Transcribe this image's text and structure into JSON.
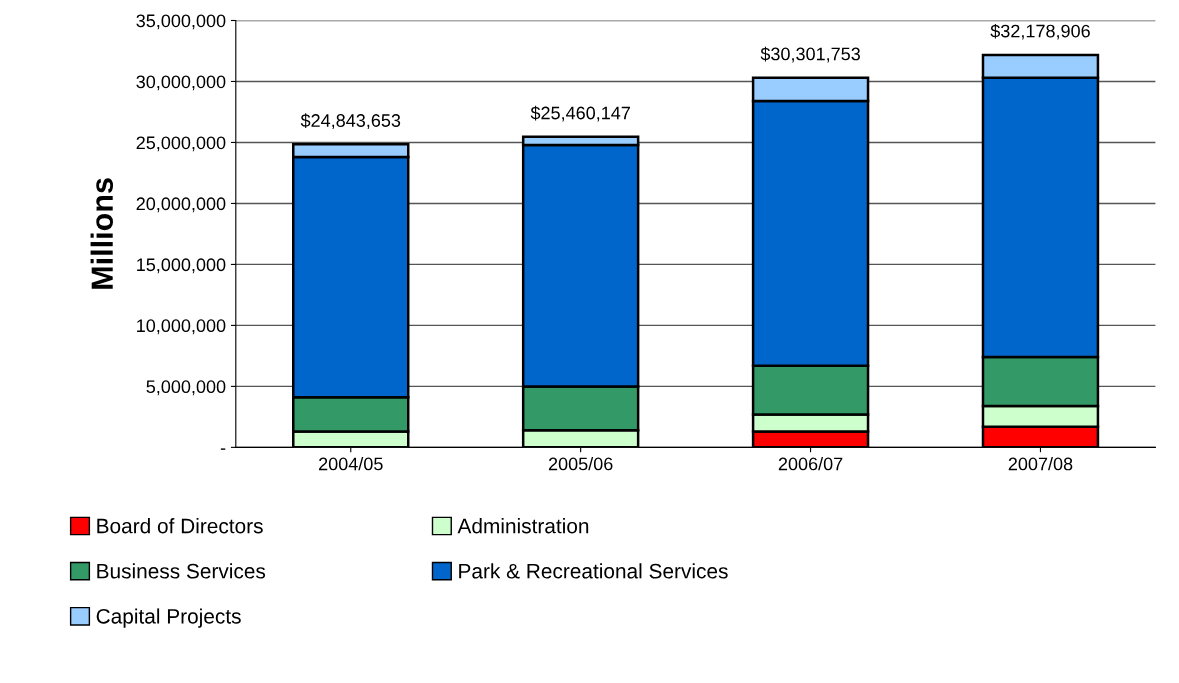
{
  "chart_data": {
    "type": "bar",
    "stacked": true,
    "ylabel": "Millions",
    "categories": [
      "2004/05",
      "2005/06",
      "2006/07",
      "2007/08"
    ],
    "series": [
      {
        "name": "Board of Directors",
        "color": "#ff0000",
        "values": [
          0,
          0,
          1300000,
          1700000
        ]
      },
      {
        "name": "Administration",
        "color": "#ccffcc",
        "values": [
          1300000,
          1400000,
          1400000,
          1700000
        ]
      },
      {
        "name": "Business Services",
        "color": "#339966",
        "values": [
          2800000,
          3600000,
          4000000,
          4000000
        ]
      },
      {
        "name": "Park & Recreational Services",
        "color": "#0066cc",
        "values": [
          19700000,
          19800000,
          21700000,
          22900000
        ]
      },
      {
        "name": "Capital Projects",
        "color": "#99ccff",
        "values": [
          1043653,
          660147,
          1901753,
          1878906
        ]
      }
    ],
    "totals": [
      "$24,843,653",
      "$25,460,147",
      "$30,301,753",
      "$32,178,906"
    ],
    "ylim": [
      0,
      35000000
    ],
    "yticks": [
      {
        "value": 0,
        "label": "-"
      },
      {
        "value": 5000000,
        "label": "5,000,000"
      },
      {
        "value": 10000000,
        "label": "10,000,000"
      },
      {
        "value": 15000000,
        "label": "15,000,000"
      },
      {
        "value": 20000000,
        "label": "20,000,000"
      },
      {
        "value": 25000000,
        "label": "25,000,000"
      },
      {
        "value": 30000000,
        "label": "30,000,000"
      },
      {
        "value": 35000000,
        "label": "35,000,000"
      }
    ],
    "grid": "y",
    "legend": "bottom"
  }
}
